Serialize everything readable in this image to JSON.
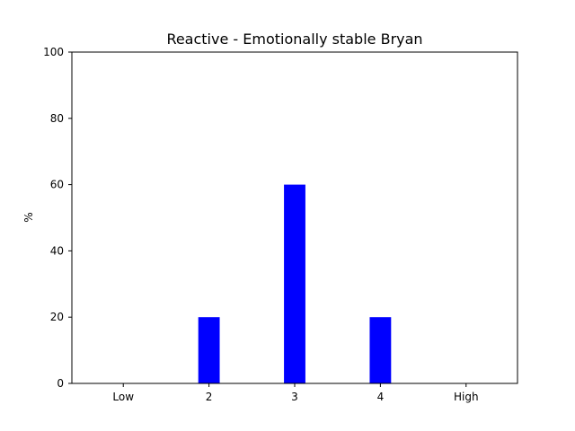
{
  "chart_data": {
    "type": "bar",
    "title": "Reactive - Emotionally stable Bryan",
    "xlabel": "",
    "ylabel": "%",
    "categories": [
      "Low",
      "2",
      "3",
      "4",
      "High"
    ],
    "values": [
      0,
      20,
      60,
      20,
      0
    ],
    "ylim": [
      0,
      100
    ],
    "yticks": [
      0,
      20,
      40,
      60,
      80,
      100
    ],
    "bar_color": "#0000ff",
    "grid": false,
    "legend": "none"
  }
}
